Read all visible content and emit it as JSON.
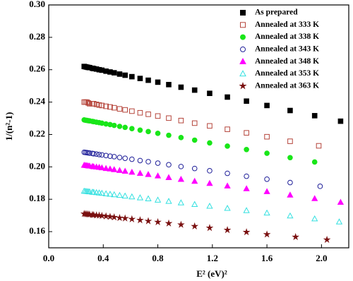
{
  "chart_data": {
    "type": "scatter",
    "xlabel": "E² (eV)²",
    "ylabel": "1/(n²-1)",
    "xlim": [
      0,
      2.2
    ],
    "ylim": [
      0.15,
      0.3
    ],
    "xticks": [
      {
        "value": 0,
        "label": "0.0"
      },
      0.4,
      0.8,
      1.2,
      1.6,
      {
        "value": 2,
        "label": "2.0"
      }
    ],
    "yticks": [
      0.16,
      0.18,
      {
        "value": 0.2,
        "label": "0.20"
      },
      0.22,
      0.24,
      0.26,
      0.28,
      {
        "value": 0.3,
        "label": "0.30"
      }
    ],
    "legend": "upper right",
    "series": [
      {
        "name": "As prepared",
        "color": "#000000",
        "marker": "square",
        "filled": true,
        "x": [
          0.26,
          0.27,
          0.28,
          0.29,
          0.3,
          0.32,
          0.33,
          0.35,
          0.37,
          0.39,
          0.42,
          0.45,
          0.48,
          0.52,
          0.56,
          0.61,
          0.67,
          0.73,
          0.8,
          0.88,
          0.97,
          1.07,
          1.18,
          1.31,
          1.45,
          1.6,
          1.77,
          1.95,
          2.14
        ],
        "values": [
          0.262,
          0.2618,
          0.2616,
          0.2614,
          0.2613,
          0.2609,
          0.2607,
          0.2604,
          0.26,
          0.2597,
          0.2591,
          0.2586,
          0.2581,
          0.2573,
          0.2566,
          0.2557,
          0.2546,
          0.2535,
          0.2523,
          0.2508,
          0.2492,
          0.2474,
          0.2454,
          0.2431,
          0.2406,
          0.2379,
          0.2348,
          0.2316,
          0.2282
        ]
      },
      {
        "name": "Annealed at 333 K",
        "color": "#b5443a",
        "marker": "square",
        "filled": false,
        "x": [
          0.26,
          0.27,
          0.28,
          0.29,
          0.3,
          0.32,
          0.33,
          0.35,
          0.37,
          0.39,
          0.42,
          0.45,
          0.48,
          0.52,
          0.56,
          0.61,
          0.67,
          0.73,
          0.8,
          0.88,
          0.97,
          1.07,
          1.18,
          1.31,
          1.45,
          1.6,
          1.77,
          1.98
        ],
        "values": [
          0.24,
          0.24,
          0.24,
          0.2395,
          0.239,
          0.239,
          0.239,
          0.2386,
          0.2382,
          0.2379,
          0.2374,
          0.237,
          0.2365,
          0.2358,
          0.2352,
          0.2344,
          0.2334,
          0.2325,
          0.2314,
          0.2301,
          0.2286,
          0.227,
          0.2253,
          0.2232,
          0.221,
          0.2186,
          0.2158,
          0.213
        ]
      },
      {
        "name": "Annealed at 338 K",
        "color": "#19e619",
        "marker": "circle",
        "filled": true,
        "x": [
          0.26,
          0.27,
          0.28,
          0.29,
          0.3,
          0.32,
          0.33,
          0.35,
          0.37,
          0.39,
          0.42,
          0.45,
          0.48,
          0.52,
          0.56,
          0.61,
          0.67,
          0.73,
          0.8,
          0.88,
          0.97,
          1.07,
          1.18,
          1.31,
          1.45,
          1.6,
          1.77,
          1.95
        ],
        "values": [
          0.229,
          0.2288,
          0.2287,
          0.2285,
          0.2284,
          0.2281,
          0.2279,
          0.2276,
          0.2273,
          0.227,
          0.2265,
          0.2261,
          0.2256,
          0.225,
          0.2244,
          0.2236,
          0.2227,
          0.2218,
          0.2207,
          0.2195,
          0.2181,
          0.2165,
          0.2148,
          0.2128,
          0.2107,
          0.2084,
          0.2057,
          0.203
        ]
      },
      {
        "name": "Annealed at 343 K",
        "color": "#1f1f99",
        "marker": "circle",
        "filled": false,
        "x": [
          0.26,
          0.27,
          0.28,
          0.29,
          0.3,
          0.32,
          0.33,
          0.35,
          0.37,
          0.39,
          0.42,
          0.45,
          0.48,
          0.52,
          0.56,
          0.61,
          0.67,
          0.73,
          0.8,
          0.88,
          0.97,
          1.07,
          1.18,
          1.31,
          1.45,
          1.6,
          1.77,
          1.99
        ],
        "values": [
          0.209,
          0.2089,
          0.2088,
          0.2086,
          0.2085,
          0.2083,
          0.2081,
          0.2079,
          0.2076,
          0.2074,
          0.207,
          0.2066,
          0.2063,
          0.2058,
          0.2053,
          0.2047,
          0.2039,
          0.2032,
          0.2023,
          0.2013,
          0.2002,
          0.199,
          0.1976,
          0.196,
          0.1942,
          0.1924,
          0.1903,
          0.188
        ]
      },
      {
        "name": "Annealed at 348 K",
        "color": "#ff00ff",
        "marker": "triangle",
        "filled": true,
        "x": [
          0.26,
          0.27,
          0.28,
          0.29,
          0.3,
          0.32,
          0.33,
          0.35,
          0.37,
          0.39,
          0.42,
          0.45,
          0.48,
          0.52,
          0.56,
          0.61,
          0.67,
          0.73,
          0.8,
          0.88,
          0.97,
          1.07,
          1.18,
          1.31,
          1.45,
          1.6,
          1.77,
          1.95,
          2.14
        ],
        "values": [
          0.201,
          0.2009,
          0.2008,
          0.2006,
          0.2005,
          0.2003,
          0.2001,
          0.1999,
          0.1997,
          0.1994,
          0.199,
          0.1987,
          0.1983,
          0.1978,
          0.1973,
          0.1967,
          0.196,
          0.1953,
          0.1944,
          0.1934,
          0.1923,
          0.1911,
          0.1898,
          0.1882,
          0.1865,
          0.1847,
          0.1826,
          0.1804,
          0.1781
        ]
      },
      {
        "name": "Annealed at 353 K",
        "color": "#33e0e0",
        "marker": "triangle",
        "filled": false,
        "x": [
          0.26,
          0.27,
          0.28,
          0.29,
          0.3,
          0.32,
          0.33,
          0.35,
          0.37,
          0.39,
          0.42,
          0.45,
          0.48,
          0.52,
          0.56,
          0.61,
          0.67,
          0.73,
          0.8,
          0.88,
          0.97,
          1.07,
          1.18,
          1.31,
          1.45,
          1.6,
          1.77,
          1.95,
          2.13
        ],
        "values": [
          0.185,
          0.1849,
          0.1848,
          0.1847,
          0.1846,
          0.1844,
          0.1843,
          0.1841,
          0.1839,
          0.1837,
          0.1834,
          0.1831,
          0.1828,
          0.1824,
          0.182,
          0.1815,
          0.1809,
          0.1803,
          0.1795,
          0.1787,
          0.1778,
          0.1768,
          0.1757,
          0.1744,
          0.173,
          0.1715,
          0.1697,
          0.1679,
          0.166
        ]
      },
      {
        "name": "Annealed at 363 K",
        "color": "#7a1010",
        "marker": "star",
        "filled": true,
        "x": [
          0.26,
          0.27,
          0.28,
          0.29,
          0.3,
          0.32,
          0.33,
          0.35,
          0.37,
          0.39,
          0.42,
          0.45,
          0.48,
          0.52,
          0.56,
          0.61,
          0.67,
          0.73,
          0.8,
          0.88,
          0.97,
          1.07,
          1.18,
          1.31,
          1.45,
          1.6,
          1.81,
          2.04
        ],
        "values": [
          0.171,
          0.1709,
          0.1708,
          0.1707,
          0.1706,
          0.1704,
          0.1703,
          0.1701,
          0.17,
          0.1698,
          0.1695,
          0.1692,
          0.1689,
          0.1685,
          0.1682,
          0.1677,
          0.1671,
          0.1665,
          0.1659,
          0.1651,
          0.1643,
          0.1633,
          0.1623,
          0.161,
          0.1597,
          0.1583,
          0.1567,
          0.155
        ]
      }
    ]
  }
}
